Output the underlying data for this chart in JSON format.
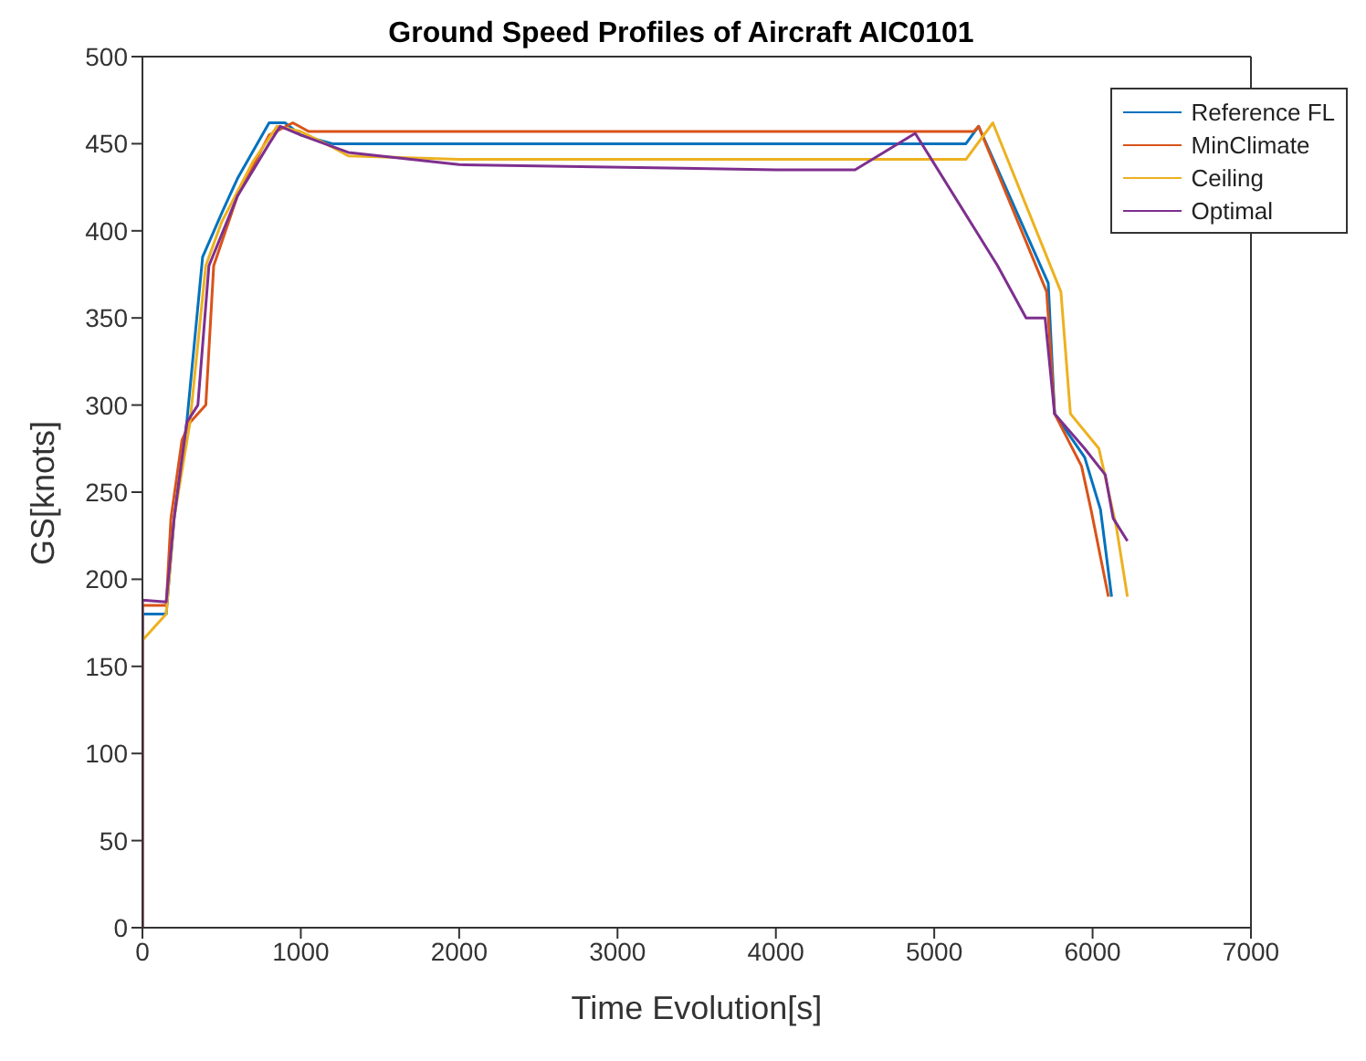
{
  "chart_data": {
    "type": "line",
    "title": "Ground Speed Profiles of Aircraft AIC0101",
    "xlabel": "Time Evolution[s]",
    "ylabel": "GS[knots]",
    "xlim": [
      0,
      7000
    ],
    "xticks": [
      0,
      1000,
      2000,
      3000,
      4000,
      5000,
      6000,
      7000
    ],
    "ylim": [
      0,
      500
    ],
    "yticks": [
      0,
      50,
      100,
      150,
      200,
      250,
      300,
      350,
      400,
      450,
      500
    ],
    "grid": false,
    "legend": "top right",
    "marker": "none",
    "line_style": "solid",
    "series": [
      {
        "name": "Reference FL",
        "color": "#0072bd",
        "x": [
          0,
          0,
          150,
          200,
          280,
          380,
          500,
          600,
          800,
          900,
          1000,
          1200,
          5200,
          5280,
          5720,
          5760,
          5950,
          6050,
          6120
        ],
        "values": [
          0,
          180,
          180,
          235,
          290,
          385,
          410,
          430,
          462,
          462,
          455,
          450,
          450,
          460,
          370,
          295,
          270,
          240,
          190
        ]
      },
      {
        "name": "MinClimate",
        "color": "#d95319",
        "x": [
          0,
          0,
          150,
          180,
          250,
          300,
          400,
          450,
          600,
          800,
          950,
          1050,
          5250,
          5280,
          5710,
          5760,
          5930,
          5990,
          6100
        ],
        "values": [
          0,
          185,
          185,
          235,
          280,
          290,
          300,
          380,
          420,
          455,
          462,
          457,
          457,
          460,
          365,
          295,
          265,
          240,
          190
        ]
      },
      {
        "name": "Ceiling",
        "color": "#edb120",
        "x": [
          0,
          0,
          150,
          200,
          300,
          400,
          500,
          700,
          850,
          1000,
          1200,
          1300,
          2000,
          5200,
          5370,
          5800,
          5860,
          6040,
          6150,
          6220
        ],
        "values": [
          0,
          165,
          180,
          235,
          290,
          380,
          405,
          440,
          460,
          457,
          448,
          443,
          441,
          441,
          462,
          365,
          295,
          275,
          230,
          190
        ]
      },
      {
        "name": "Optimal",
        "color": "#7e2f8e",
        "x": [
          0,
          0,
          150,
          200,
          280,
          350,
          420,
          600,
          800,
          870,
          1000,
          1300,
          2000,
          4000,
          4500,
          4880,
          5400,
          5580,
          5700,
          5760,
          5950,
          6080,
          6130,
          6220
        ],
        "values": [
          0,
          188,
          187,
          235,
          290,
          300,
          380,
          420,
          450,
          460,
          455,
          445,
          438,
          435,
          435,
          456,
          380,
          350,
          350,
          295,
          275,
          260,
          235,
          222
        ]
      }
    ]
  }
}
